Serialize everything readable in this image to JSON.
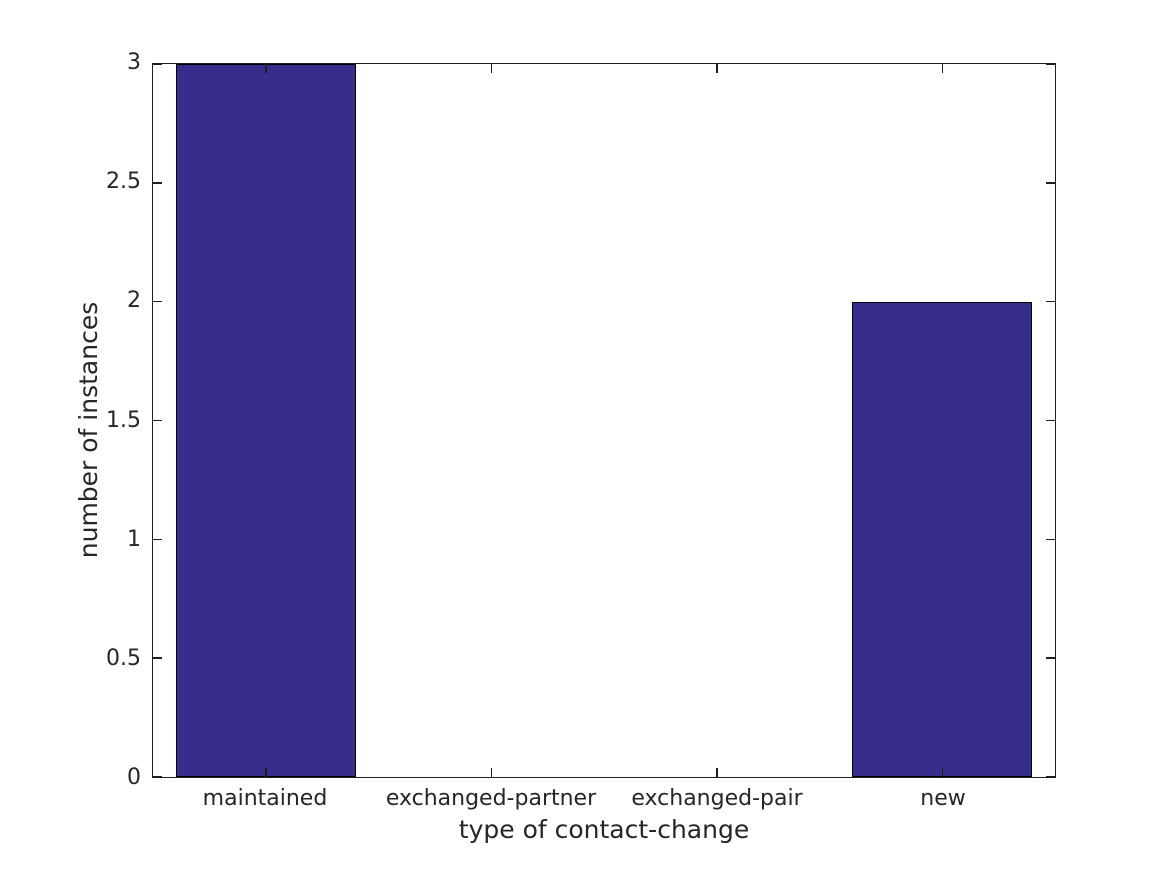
{
  "figure": {
    "background": "#ffffff"
  },
  "chart_data": {
    "type": "bar",
    "title": "",
    "categories": [
      "maintained",
      "exchanged-partner",
      "exchanged-pair",
      "new"
    ],
    "values": [
      3,
      0,
      0,
      2
    ],
    "xlabel": "type of contact-change",
    "ylabel": "number of instances",
    "ylim": [
      0,
      3
    ],
    "yticks": [
      0,
      0.5,
      1,
      1.5,
      2,
      2.5,
      3
    ],
    "ytick_labels": [
      "0",
      "0.5",
      "1",
      "1.5",
      "2",
      "2.5",
      "3"
    ],
    "bar_width_fraction": 0.8,
    "bar_color": "#372D8A",
    "bar_edge_color": "#000000",
    "axis_color": "#1f1f1f",
    "text_color": "#262626",
    "grid": false,
    "legend": null,
    "box": true,
    "tick_direction": "in"
  }
}
